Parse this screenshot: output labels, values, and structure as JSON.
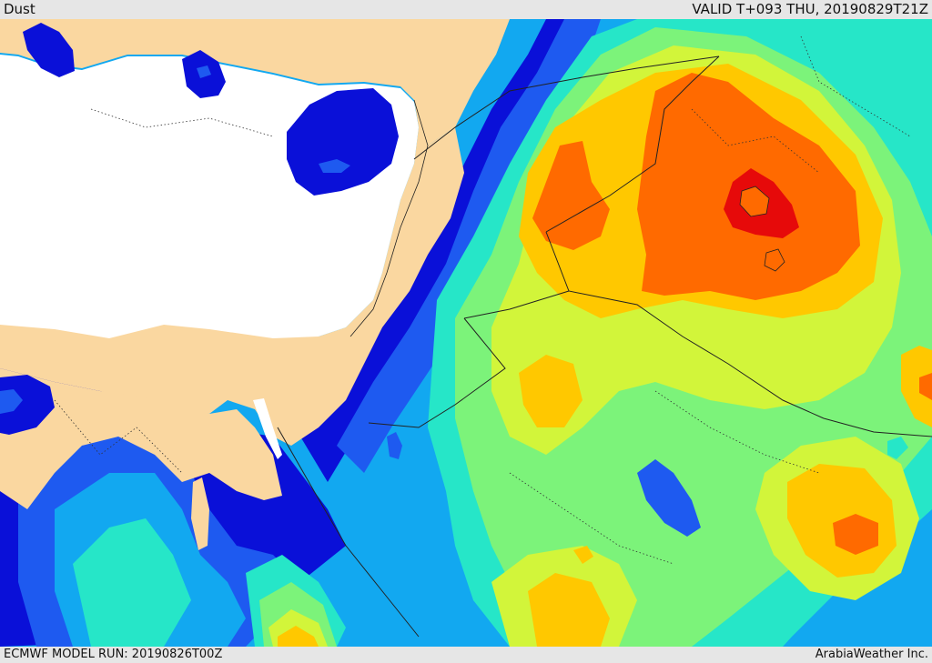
{
  "header": {
    "field_label": "Dust",
    "valid_time": "VALID T+093 THU, 20190829T21Z"
  },
  "footer": {
    "model_run": "ECMWF MODEL RUN: 20190826T00Z",
    "credit": "ArabiaWeather Inc."
  },
  "map": {
    "field": "dust concentration",
    "region": "Eastern Mediterranean, Levant, Iraq, northern Arabia, Egypt",
    "color_scale": [
      "#0a10d8",
      "#1e5af0",
      "#12a8f0",
      "#26e6c8",
      "#7cf37a",
      "#d2f53a",
      "#ffc800",
      "#ff9a00",
      "#ff6a00",
      "#e60a0a"
    ],
    "land_color": "#fad7a0",
    "sea_color": "#ffffff"
  }
}
